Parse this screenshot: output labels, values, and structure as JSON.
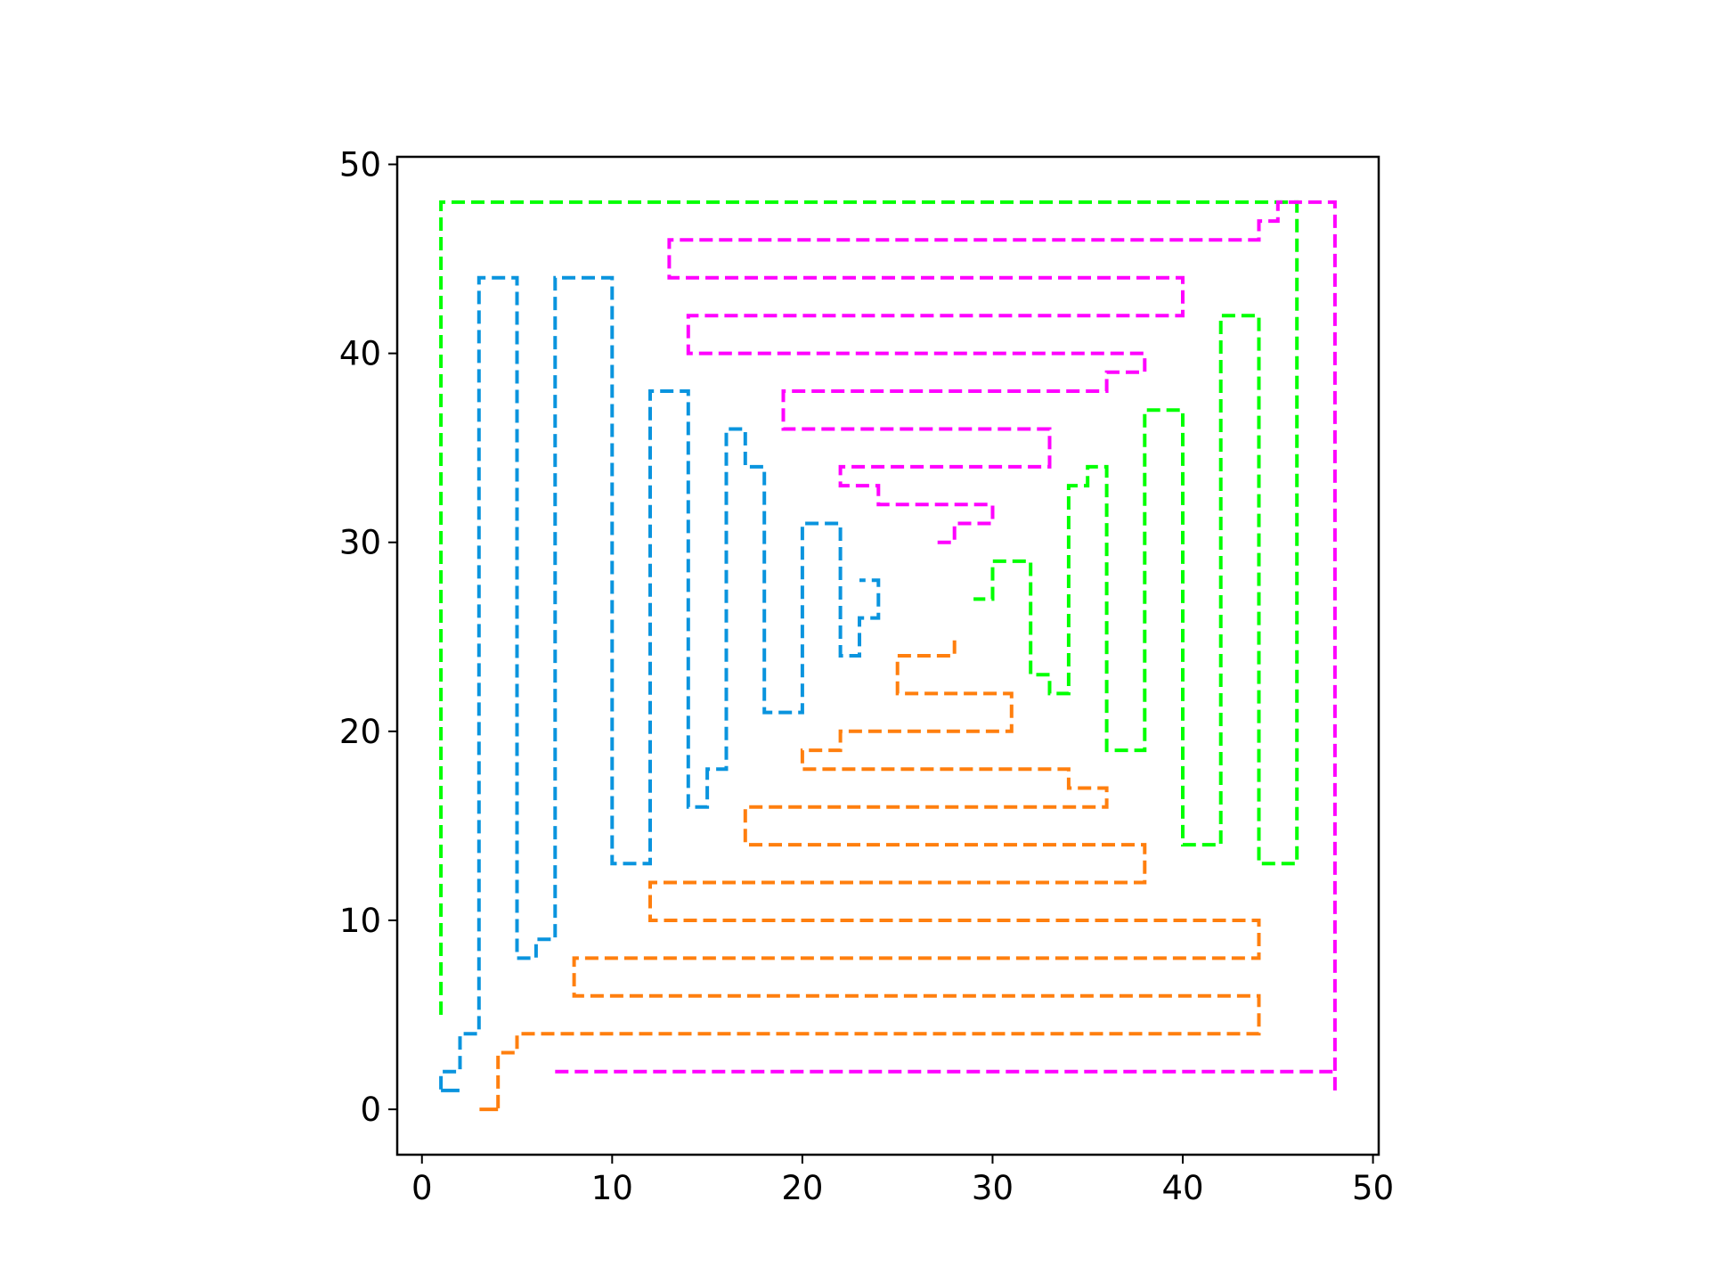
{
  "chart_data": {
    "type": "line",
    "title": "",
    "xlabel": "",
    "ylabel": "",
    "xlim": [
      -1.3,
      50.3
    ],
    "ylim": [
      -2.4,
      50.4
    ],
    "xticks": [
      0,
      10,
      20,
      30,
      40,
      50
    ],
    "yticks": [
      0,
      10,
      20,
      30,
      40,
      50
    ],
    "x_tick_labels": [
      "0",
      "10",
      "20",
      "30",
      "40",
      "50"
    ],
    "y_tick_labels": [
      "0",
      "10",
      "20",
      "30",
      "40",
      "50"
    ],
    "grid": false,
    "legend": "none",
    "line_style": "dashed",
    "series": [
      {
        "color": "#00ff00",
        "points": [
          [
            1,
            5
          ],
          [
            1,
            48
          ],
          [
            46,
            48
          ],
          [
            46,
            13
          ],
          [
            44,
            13
          ],
          [
            44,
            42
          ],
          [
            42,
            42
          ],
          [
            42,
            14
          ],
          [
            40,
            14
          ],
          [
            40,
            37
          ],
          [
            38,
            37
          ],
          [
            38,
            19
          ],
          [
            36,
            19
          ],
          [
            36,
            34
          ],
          [
            35,
            34
          ],
          [
            35,
            33
          ],
          [
            34,
            33
          ],
          [
            34,
            22
          ],
          [
            33,
            22
          ],
          [
            33,
            23
          ],
          [
            32,
            23
          ],
          [
            32,
            29
          ],
          [
            30,
            29
          ],
          [
            30,
            27
          ],
          [
            29,
            27
          ]
        ]
      },
      {
        "color": "#ff00ff",
        "points": [
          [
            48,
            1
          ],
          [
            48,
            48
          ],
          [
            45,
            48
          ],
          [
            45,
            47
          ],
          [
            44,
            47
          ],
          [
            44,
            46
          ],
          [
            13,
            46
          ],
          [
            13,
            44
          ],
          [
            40,
            44
          ],
          [
            40,
            42
          ],
          [
            14,
            42
          ],
          [
            14,
            40
          ],
          [
            38,
            40
          ],
          [
            38,
            39
          ],
          [
            36,
            39
          ],
          [
            36,
            38
          ],
          [
            19,
            38
          ],
          [
            19,
            36
          ],
          [
            33,
            36
          ],
          [
            33,
            34
          ],
          [
            22,
            34
          ],
          [
            22,
            33
          ],
          [
            24,
            33
          ],
          [
            24,
            32
          ],
          [
            30,
            32
          ],
          [
            30,
            31
          ],
          [
            28,
            31
          ],
          [
            28,
            30
          ],
          [
            27,
            30
          ]
        ]
      },
      {
        "color": "#ff7f0e",
        "points": [
          [
            4,
            0
          ],
          [
            3,
            0
          ],
          [
            3,
            0
          ],
          [
            4,
            0
          ],
          [
            4,
            3
          ],
          [
            5,
            3
          ],
          [
            5,
            4
          ],
          [
            44,
            4
          ],
          [
            44,
            6
          ],
          [
            8,
            6
          ],
          [
            8,
            8
          ],
          [
            44,
            8
          ],
          [
            44,
            10
          ],
          [
            12,
            10
          ],
          [
            12,
            12
          ],
          [
            38,
            12
          ],
          [
            38,
            14
          ],
          [
            17,
            14
          ],
          [
            17,
            16
          ],
          [
            36,
            16
          ],
          [
            36,
            17
          ],
          [
            34,
            17
          ],
          [
            34,
            18
          ],
          [
            20,
            18
          ],
          [
            20,
            19
          ],
          [
            22,
            19
          ],
          [
            22,
            20
          ],
          [
            31,
            20
          ],
          [
            31,
            22
          ],
          [
            25,
            22
          ],
          [
            25,
            24
          ],
          [
            28,
            24
          ],
          [
            28,
            25
          ]
        ]
      },
      {
        "color": "#0a94de",
        "points": [
          [
            1,
            1
          ],
          [
            2,
            1
          ],
          [
            1,
            1
          ],
          [
            1,
            2
          ],
          [
            2,
            2
          ],
          [
            2,
            4
          ],
          [
            3,
            4
          ],
          [
            3,
            44
          ],
          [
            5,
            44
          ],
          [
            5,
            8
          ],
          [
            6,
            8
          ],
          [
            6,
            9
          ],
          [
            7,
            9
          ],
          [
            7,
            44
          ],
          [
            10,
            44
          ],
          [
            10,
            13
          ],
          [
            12,
            13
          ],
          [
            12,
            38
          ],
          [
            14,
            38
          ],
          [
            14,
            16
          ],
          [
            15,
            16
          ],
          [
            15,
            18
          ],
          [
            16,
            18
          ],
          [
            16,
            36
          ],
          [
            17,
            36
          ],
          [
            17,
            34
          ],
          [
            18,
            34
          ],
          [
            18,
            21
          ],
          [
            20,
            21
          ],
          [
            20,
            31
          ],
          [
            22,
            31
          ],
          [
            22,
            24
          ],
          [
            23,
            24
          ],
          [
            23,
            26
          ],
          [
            24,
            26
          ],
          [
            24,
            28
          ],
          [
            23,
            28
          ]
        ]
      },
      {
        "color": "#7f7f7f",
        "points": [
          [
            7,
            2
          ],
          [
            48,
            2
          ]
        ]
      }
    ]
  }
}
